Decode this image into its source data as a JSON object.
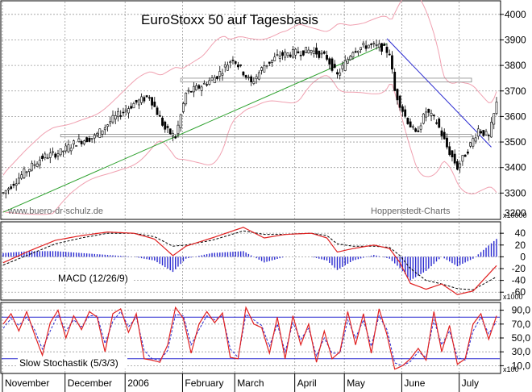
{
  "chart_data": [
    {
      "type": "candlestick",
      "title": "EuroStoxx 50 auf Tagesbasis",
      "watermark_left": "www.buero-dr-schulz.de",
      "watermark_right": "Hoppenstedt-Charts",
      "ylim": [
        3200,
        4050
      ],
      "yticks": [
        3300,
        3400,
        3500,
        3600,
        3700,
        3800,
        3900,
        4000
      ],
      "ytick_labels": [
        "3300",
        "3400",
        "3500",
        "3600",
        "3700",
        "3800",
        "3900",
        "4000"
      ],
      "ytick_top_partial": "3200",
      "scale_note": "x10000",
      "horizontal_bands": [
        {
          "name": "resistance",
          "y0": 3735,
          "y1": 3750
        },
        {
          "name": "support",
          "y0": 3520,
          "y1": 3530
        }
      ],
      "trendlines": [
        {
          "name": "uptrend",
          "color": "#2ca02c",
          "x0": 0,
          "y0": 3225,
          "x1": 147,
          "y1": 3885
        },
        {
          "name": "downtrend",
          "color": "#2a2ad0",
          "x0": 147,
          "y0": 3905,
          "x1": 187,
          "y1": 3480
        }
      ],
      "anchors": [
        [
          0,
          3300
        ],
        [
          8,
          3380
        ],
        [
          15,
          3440
        ],
        [
          22,
          3460
        ],
        [
          28,
          3500
        ],
        [
          35,
          3520
        ],
        [
          42,
          3590
        ],
        [
          50,
          3650
        ],
        [
          56,
          3680
        ],
        [
          62,
          3550
        ],
        [
          66,
          3520
        ],
        [
          70,
          3690
        ],
        [
          76,
          3720
        ],
        [
          82,
          3760
        ],
        [
          88,
          3830
        ],
        [
          95,
          3730
        ],
        [
          100,
          3800
        ],
        [
          106,
          3840
        ],
        [
          112,
          3850
        ],
        [
          118,
          3860
        ],
        [
          124,
          3830
        ],
        [
          128,
          3760
        ],
        [
          134,
          3860
        ],
        [
          140,
          3880
        ],
        [
          145,
          3870
        ],
        [
          148,
          3850
        ],
        [
          150,
          3700
        ],
        [
          154,
          3600
        ],
        [
          158,
          3530
        ],
        [
          162,
          3620
        ],
        [
          166,
          3580
        ],
        [
          170,
          3480
        ],
        [
          174,
          3400
        ],
        [
          178,
          3470
        ],
        [
          182,
          3550
        ],
        [
          186,
          3520
        ],
        [
          189,
          3650
        ]
      ]
    },
    {
      "type": "line",
      "label": "MACD (12/26/9)",
      "ylim": [
        -72,
        58
      ],
      "yticks": [
        40,
        20,
        0,
        -20,
        -40,
        -60
      ],
      "ytick_labels": [
        "40",
        "20",
        "0",
        "-20",
        "-40",
        "-60"
      ],
      "scale_note": "x1000",
      "series": [
        {
          "name": "macd",
          "color": "#e02020",
          "anchors": [
            [
              0,
              -10
            ],
            [
              10,
              10
            ],
            [
              20,
              28
            ],
            [
              30,
              36
            ],
            [
              40,
              42
            ],
            [
              50,
              40
            ],
            [
              58,
              30
            ],
            [
              65,
              2
            ],
            [
              70,
              18
            ],
            [
              80,
              32
            ],
            [
              92,
              50
            ],
            [
              100,
              32
            ],
            [
              108,
              38
            ],
            [
              118,
              40
            ],
            [
              124,
              32
            ],
            [
              128,
              8
            ],
            [
              134,
              14
            ],
            [
              142,
              20
            ],
            [
              148,
              14
            ],
            [
              152,
              -10
            ],
            [
              156,
              -45
            ],
            [
              162,
              -55
            ],
            [
              168,
              -46
            ],
            [
              174,
              -64
            ],
            [
              180,
              -58
            ],
            [
              189,
              -15
            ]
          ]
        },
        {
          "name": "signal",
          "color": "#000000",
          "dashed": true,
          "anchors": [
            [
              0,
              -14
            ],
            [
              10,
              4
            ],
            [
              20,
              22
            ],
            [
              30,
              32
            ],
            [
              40,
              40
            ],
            [
              50,
              40
            ],
            [
              58,
              34
            ],
            [
              65,
              18
            ],
            [
              70,
              20
            ],
            [
              80,
              28
            ],
            [
              92,
              44
            ],
            [
              100,
              38
            ],
            [
              108,
              38
            ],
            [
              118,
              40
            ],
            [
              124,
              36
            ],
            [
              128,
              22
            ],
            [
              134,
              18
            ],
            [
              142,
              18
            ],
            [
              148,
              16
            ],
            [
              152,
              2
            ],
            [
              156,
              -20
            ],
            [
              162,
              -40
            ],
            [
              168,
              -46
            ],
            [
              174,
              -54
            ],
            [
              180,
              -56
            ],
            [
              189,
              -34
            ]
          ]
        }
      ]
    },
    {
      "type": "line",
      "label": "Slow Stochastik (5/3/3)",
      "ylim": [
        0,
        100
      ],
      "yticks": [
        90,
        70,
        50,
        30,
        10
      ],
      "ytick_labels": [
        "90,0",
        "70,0",
        "50,0",
        "30,0",
        "10,0"
      ],
      "scale_note": "x100",
      "reference_lines": [
        80,
        20
      ],
      "series": [
        {
          "name": "%K",
          "color": "#e02020",
          "anchors": [
            [
              0,
              70
            ],
            [
              3,
              85
            ],
            [
              6,
              60
            ],
            [
              9,
              88
            ],
            [
              12,
              55
            ],
            [
              15,
              25
            ],
            [
              18,
              72
            ],
            [
              21,
              90
            ],
            [
              24,
              50
            ],
            [
              27,
              82
            ],
            [
              30,
              62
            ],
            [
              33,
              88
            ],
            [
              36,
              80
            ],
            [
              39,
              30
            ],
            [
              42,
              85
            ],
            [
              45,
              92
            ],
            [
              48,
              58
            ],
            [
              51,
              85
            ],
            [
              54,
              20
            ],
            [
              57,
              18
            ],
            [
              60,
              15
            ],
            [
              63,
              40
            ],
            [
              66,
              94
            ],
            [
              69,
              78
            ],
            [
              72,
              28
            ],
            [
              75,
              70
            ],
            [
              78,
              88
            ],
            [
              81,
              72
            ],
            [
              84,
              86
            ],
            [
              87,
              22
            ],
            [
              90,
              20
            ],
            [
              93,
              94
            ],
            [
              96,
              70
            ],
            [
              99,
              65
            ],
            [
              102,
              28
            ],
            [
              105,
              80
            ],
            [
              108,
              20
            ],
            [
              111,
              82
            ],
            [
              114,
              40
            ],
            [
              117,
              70
            ],
            [
              120,
              15
            ],
            [
              123,
              60
            ],
            [
              126,
              20
            ],
            [
              129,
              30
            ],
            [
              132,
              88
            ],
            [
              135,
              40
            ],
            [
              138,
              85
            ],
            [
              141,
              28
            ],
            [
              144,
              92
            ],
            [
              147,
              55
            ],
            [
              150,
              5
            ],
            [
              153,
              10
            ],
            [
              156,
              20
            ],
            [
              159,
              35
            ],
            [
              162,
              18
            ],
            [
              165,
              88
            ],
            [
              168,
              30
            ],
            [
              171,
              68
            ],
            [
              174,
              12
            ],
            [
              177,
              20
            ],
            [
              180,
              70
            ],
            [
              183,
              85
            ],
            [
              186,
              48
            ],
            [
              189,
              82
            ]
          ]
        },
        {
          "name": "%D",
          "color": "#2a2ad0",
          "dashed": true,
          "anchors": [
            [
              0,
              64
            ],
            [
              3,
              78
            ],
            [
              6,
              68
            ],
            [
              9,
              80
            ],
            [
              12,
              62
            ],
            [
              15,
              34
            ],
            [
              18,
              60
            ],
            [
              21,
              84
            ],
            [
              24,
              60
            ],
            [
              27,
              76
            ],
            [
              30,
              66
            ],
            [
              33,
              82
            ],
            [
              36,
              82
            ],
            [
              39,
              42
            ],
            [
              42,
              74
            ],
            [
              45,
              88
            ],
            [
              48,
              66
            ],
            [
              51,
              80
            ],
            [
              54,
              32
            ],
            [
              57,
              20
            ],
            [
              60,
              18
            ],
            [
              63,
              32
            ],
            [
              66,
              84
            ],
            [
              69,
              82
            ],
            [
              72,
              40
            ],
            [
              75,
              62
            ],
            [
              78,
              82
            ],
            [
              81,
              76
            ],
            [
              84,
              82
            ],
            [
              87,
              34
            ],
            [
              90,
              22
            ],
            [
              93,
              84
            ],
            [
              96,
              76
            ],
            [
              99,
              68
            ],
            [
              102,
              38
            ],
            [
              105,
              70
            ],
            [
              108,
              30
            ],
            [
              111,
              72
            ],
            [
              114,
              48
            ],
            [
              117,
              64
            ],
            [
              120,
              24
            ],
            [
              123,
              50
            ],
            [
              126,
              28
            ],
            [
              129,
              28
            ],
            [
              132,
              76
            ],
            [
              135,
              50
            ],
            [
              138,
              76
            ],
            [
              141,
              38
            ],
            [
              144,
              82
            ],
            [
              147,
              62
            ],
            [
              150,
              14
            ],
            [
              153,
              10
            ],
            [
              156,
              16
            ],
            [
              159,
              30
            ],
            [
              162,
              22
            ],
            [
              165,
              76
            ],
            [
              168,
              40
            ],
            [
              171,
              60
            ],
            [
              174,
              22
            ],
            [
              177,
              18
            ],
            [
              180,
              60
            ],
            [
              183,
              80
            ],
            [
              186,
              56
            ],
            [
              189,
              74
            ]
          ]
        }
      ]
    }
  ],
  "x_axis": {
    "n_days": 190,
    "month_labels": [
      "November",
      "December",
      "2006",
      "February",
      "March",
      "April",
      "May",
      "June",
      "July"
    ],
    "month_starts": [
      0,
      24,
      47,
      69,
      89,
      112,
      131,
      153,
      175
    ]
  }
}
